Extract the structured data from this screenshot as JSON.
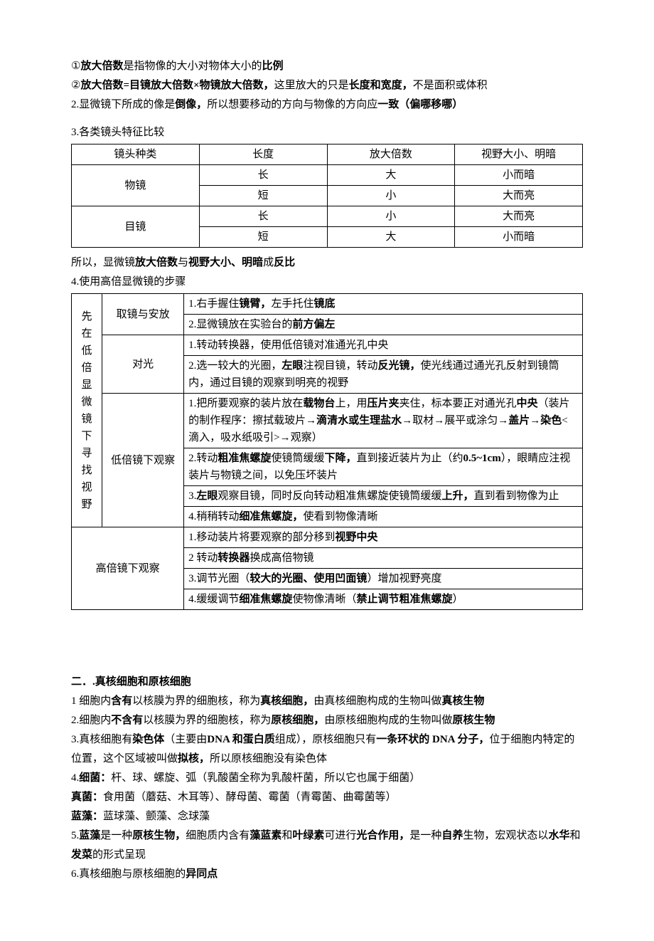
{
  "intro": {
    "line1_pre": "①",
    "line1_b1": "放大倍数",
    "line1_mid": "是指物像的大小对物体大小的",
    "line1_b2": "比例",
    "line2_pre": "②",
    "line2_b1": "放大倍数=目镜放大倍数×物镜放大倍数，",
    "line2_mid": "这里放大的只是",
    "line2_b2": "长度和宽度，",
    "line2_end": "不是面积或体积",
    "line3_pre": "2.显微镜下所成的像是",
    "line3_b1": "倒像，",
    "line3_mid": "所以想要移动的方向与物像的方向应",
    "line3_b2": "一致（偏哪移哪）"
  },
  "t1_caption": "3.各类镜头特征比较",
  "t1": {
    "h1": "镜头种类",
    "h2": "长度",
    "h3": "放大倍数",
    "h4": "视野大小、明暗",
    "r1c1": "物镜",
    "r1c2": "长",
    "r1c3": "大",
    "r1c4": "小而暗",
    "r2c2": "短",
    "r2c3": "小",
    "r2c4": "大而亮",
    "r3c1": "目镜",
    "r3c2": "长",
    "r3c3": "小",
    "r3c4": "大而亮",
    "r4c2": "短",
    "r4c3": "大",
    "r4c4": "小而暗"
  },
  "t1_after_pre": "所以，显微镜",
  "t1_after_b1": "放大倍数",
  "t1_after_mid": "与",
  "t1_after_b2": "视野大小、明暗",
  "t1_after_end": "成",
  "t1_after_b3": "反比",
  "t2_caption": "4.使用高倍显微镜的步骤",
  "t2": {
    "colA": "先在低倍显微镜下寻找视野",
    "b1": "取镜与安放",
    "b1r1_pre": "1.右手握住",
    "b1r1_b1": "镜臂，",
    "b1r1_mid": "左手托住",
    "b1r1_b2": "镜底",
    "b1r2_pre": "2.显微镜放在实验台的",
    "b1r2_b1": "前方偏左",
    "b2": "对光",
    "b2r1": "1.转动转换器，使用低倍镜对准通光孔中央",
    "b2r2_pre": "2.选一较大的光圈，",
    "b2r2_b1": "左眼",
    "b2r2_mid": "注视目镜，转动",
    "b2r2_b2": "反光镜，",
    "b2r2_mid2": "使光线通过通光孔反射到镜筒内，通过目镜的观察到明亮的视野",
    "b3": "低倍镜下观察",
    "b3r1_pre": "1.把所要观察的装片放在",
    "b3r1_b1": "载物台",
    "b3r1_mid1": "上，用",
    "b3r1_b2": "压片夹",
    "b3r1_mid2": "夹住，标本要正对通光孔",
    "b3r1_b3": "中央",
    "b3r1_mid3": "（装片的制作程序：擦拭载玻片→",
    "b3r1_b4": "滴清水或生理盐水",
    "b3r1_mid4": "→取材→展平或涂匀→",
    "b3r1_b5": "盖片",
    "b3r1_mid5": "→",
    "b3r1_b6": "染色",
    "b3r1_mid6": "<滴入，吸水纸吸引>→观察）",
    "b3r2_pre": "2.转动",
    "b3r2_b1": "粗准焦螺旋",
    "b3r2_mid1": "使镜筒缓缓",
    "b3r2_b2": "下降，",
    "b3r2_mid2": "直到接近装片为止（约",
    "b3r2_b3": "0.5~1cm",
    "b3r2_mid3": "），眼睛应注视装片与物镜之间，以免压坏装片",
    "b3r3_pre": "3.",
    "b3r3_b1": "左眼",
    "b3r3_mid1": "观察目镜，同时反向转动粗准焦螺旋使镜筒缓缓",
    "b3r3_b2": "上升，",
    "b3r3_end": "直到看到物像为止",
    "b3r4_pre": "4.稍稍转动",
    "b3r4_b1": "细准焦螺旋，",
    "b3r4_end": "使看到物像清晰",
    "colB": "高倍镜下观察",
    "c1_pre": "1.移动装片将要观察的部分移到",
    "c1_b1": "视野中央",
    "c2_pre": "2 转动",
    "c2_b1": "转换器",
    "c2_end": "换成高倍物镜",
    "c3_pre": "3.调节光圈（",
    "c3_b1": "较大的光圈、使用凹面镜",
    "c3_end": "）增加视野亮度",
    "c4_pre": "4.缓缓调节",
    "c4_b1": "细准焦螺旋",
    "c4_mid": "使物像清晰（",
    "c4_b2": "禁止调节粗准焦螺旋",
    "c4_end": "）"
  },
  "sec2": {
    "title": "二．.真核细胞和原核细胞",
    "l1_pre": "1 细胞内",
    "l1_b1": "含有",
    "l1_mid1": "以核膜为界的细胞核，称为",
    "l1_b2": "真核细胞，",
    "l1_mid2": "由真核细胞构成的生物叫做",
    "l1_b3": "真核生物",
    "l2_pre": "2.细胞内",
    "l2_b1": "不含有",
    "l2_mid1": "以核膜为界的细胞核，称为",
    "l2_b2": "原核细胞，",
    "l2_mid2": "由原核细胞构成的生物叫做",
    "l2_b3": "原核生物",
    "l3_pre": "3.真核细胞有",
    "l3_b1": "染色体",
    "l3_mid1": "（主要由",
    "l3_b2": "DNA 和蛋白质",
    "l3_mid2": "组成），原核细胞只有",
    "l3_b3": "一条环状的 DNA 分子，",
    "l3_mid3": "位于细胞内特定的位置，这个区域被叫做",
    "l3_b4": "拟核，",
    "l3_end": "所以原核细胞没有染色体",
    "l4_pre": "4.",
    "l4_b1": "细菌：",
    "l4_end": "杆、球、螺旋、弧（乳酸菌全称为乳酸杆菌，所以它也属于细菌）",
    "l5_b1": "真菌：",
    "l5_end": "食用菌（蘑菇、木耳等）、酵母菌、霉菌（青霉菌、曲霉菌等）",
    "l6_b1": "蓝藻：",
    "l6_end": "蓝球藻、颤藻、念球藻",
    "l7_pre": "5.",
    "l7_b1": "蓝藻",
    "l7_mid1": "是一种",
    "l7_b2": "原核生物，",
    "l7_mid2": "细胞质内含有",
    "l7_b3": "藻蓝素",
    "l7_mid3": "和",
    "l7_b4": "叶绿素",
    "l7_mid4": "可进行",
    "l7_b5": "光合作用，",
    "l7_mid5": "是一种",
    "l7_b6": "自养",
    "l7_mid6": "生物，宏观状态以",
    "l7_b7": "水华",
    "l7_mid7": "和",
    "l7_b8": "发菜",
    "l7_end": "的形式呈现",
    "l8_pre": "6.真核细胞与原核细胞的",
    "l8_b1": "异同点"
  }
}
